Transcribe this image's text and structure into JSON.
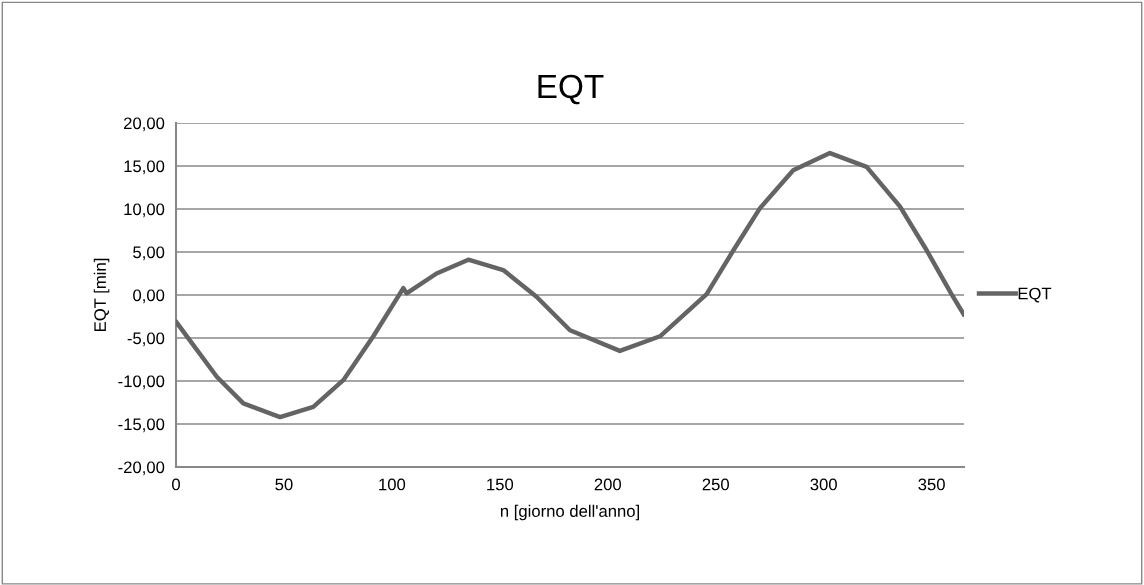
{
  "chart_data": {
    "type": "line",
    "title": "EQT",
    "xlabel": "n [giorno dell'anno]",
    "ylabel": "EQT [min]",
    "x": [
      0,
      18.9,
      31.2,
      48.2,
      63.6,
      77.5,
      91.4,
      105.3,
      106.8,
      120.7,
      135.4,
      151.6,
      167,
      182.5,
      205.6,
      224.2,
      245.8,
      258.2,
      270.5,
      285.9,
      302.9,
      319.9,
      335.3,
      347.7,
      359,
      365
    ],
    "series": [
      {
        "name": "EQT",
        "color": "#646464",
        "values": [
          -3.1,
          -9.5,
          -12.6,
          -14.2,
          -13.0,
          -9.9,
          -4.8,
          0.8,
          0.2,
          2.5,
          4.1,
          2.9,
          -0.2,
          -4.1,
          -6.5,
          -4.8,
          0.1,
          5.2,
          10.1,
          14.5,
          16.5,
          14.9,
          10.3,
          5.2,
          0.2,
          -2.3
        ]
      }
    ],
    "xlim": [
      0,
      365
    ],
    "xticks": [
      0,
      50,
      100,
      150,
      200,
      250,
      300,
      350
    ],
    "ylim": [
      -20,
      20
    ],
    "yticks": [
      {
        "value": -20,
        "label": "-20,00"
      },
      {
        "value": -15,
        "label": "-15,00"
      },
      {
        "value": -10,
        "label": "-10,00"
      },
      {
        "value": -5,
        "label": "-5,00"
      },
      {
        "value": 0,
        "label": "0,00"
      },
      {
        "value": 5,
        "label": "5,00"
      },
      {
        "value": 10,
        "label": "10,00"
      },
      {
        "value": 15,
        "label": "15,00"
      },
      {
        "value": 20,
        "label": "20,00"
      }
    ],
    "grid": "y",
    "legend": "right",
    "marker": "none",
    "line_style": "solid"
  }
}
